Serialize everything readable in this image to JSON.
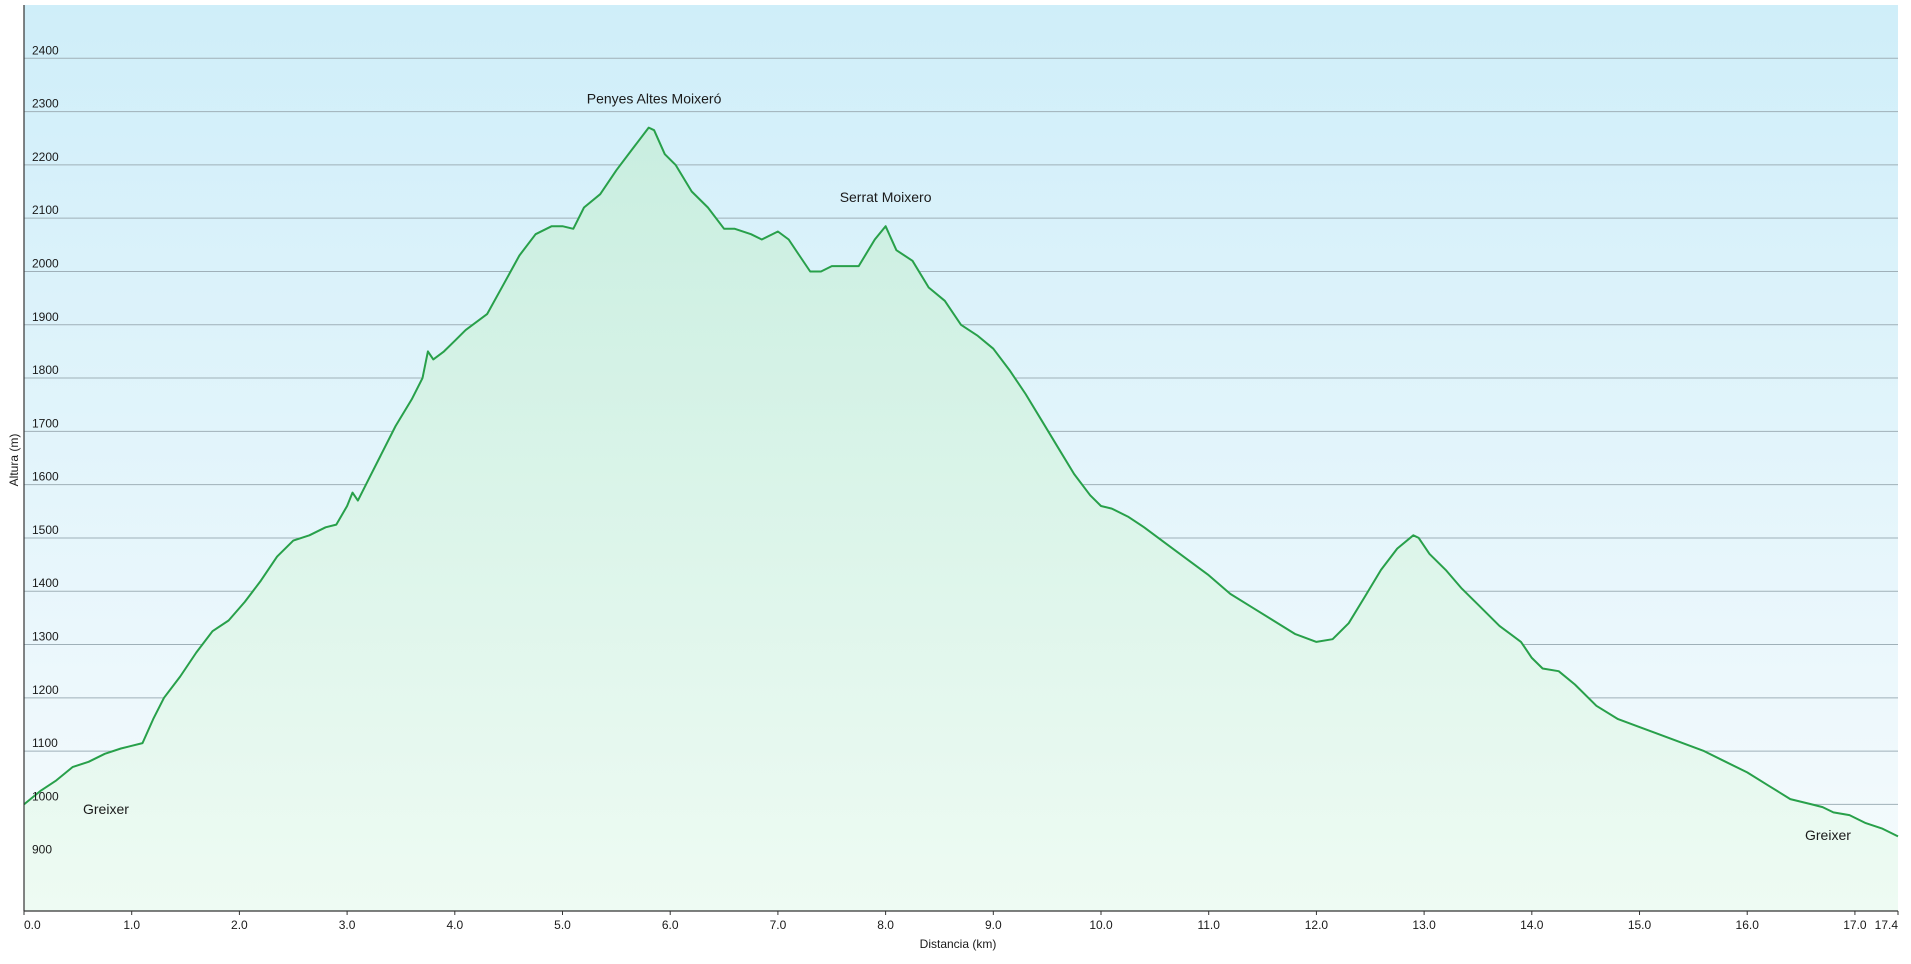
{
  "chart_data": {
    "type": "area",
    "title": "",
    "xlabel": "Distancia  (km)",
    "ylabel": "Altura (m)",
    "xlim": [
      0,
      17.4
    ],
    "ylim": [
      800,
      2500
    ],
    "x_ticks": [
      {
        "value": 0,
        "label": "0.0"
      },
      {
        "value": 1,
        "label": "1.0"
      },
      {
        "value": 2,
        "label": "2.0"
      },
      {
        "value": 3,
        "label": "3.0"
      },
      {
        "value": 4,
        "label": "4.0"
      },
      {
        "value": 5,
        "label": "5.0"
      },
      {
        "value": 6,
        "label": "6.0"
      },
      {
        "value": 7,
        "label": "7.0"
      },
      {
        "value": 8,
        "label": "8.0"
      },
      {
        "value": 9,
        "label": "9.0"
      },
      {
        "value": 10,
        "label": "10.0"
      },
      {
        "value": 11,
        "label": "11.0"
      },
      {
        "value": 12,
        "label": "12.0"
      },
      {
        "value": 13,
        "label": "13.0"
      },
      {
        "value": 14,
        "label": "14.0"
      },
      {
        "value": 15,
        "label": "15.0"
      },
      {
        "value": 16,
        "label": "16.0"
      },
      {
        "value": 17,
        "label": "17.0"
      },
      {
        "value": 17.4,
        "label": "17.4"
      }
    ],
    "y_ticks": [
      {
        "value": 900,
        "label": "900"
      },
      {
        "value": 1000,
        "label": "1000"
      },
      {
        "value": 1100,
        "label": "1100"
      },
      {
        "value": 1200,
        "label": "1200"
      },
      {
        "value": 1300,
        "label": "1300"
      },
      {
        "value": 1400,
        "label": "1400"
      },
      {
        "value": 1500,
        "label": "1500"
      },
      {
        "value": 1600,
        "label": "1600"
      },
      {
        "value": 1700,
        "label": "1700"
      },
      {
        "value": 1800,
        "label": "1800"
      },
      {
        "value": 1900,
        "label": "1900"
      },
      {
        "value": 2000,
        "label": "2000"
      },
      {
        "value": 2100,
        "label": "2100"
      },
      {
        "value": 2200,
        "label": "2200"
      },
      {
        "value": 2300,
        "label": "2300"
      },
      {
        "value": 2400,
        "label": "2400"
      }
    ],
    "grid": true,
    "series": [
      {
        "x": [
          0.0,
          0.15,
          0.3,
          0.45,
          0.6,
          0.75,
          0.9,
          1.0,
          1.1,
          1.2,
          1.3,
          1.45,
          1.6,
          1.75,
          1.9,
          2.05,
          2.2,
          2.35,
          2.5,
          2.65,
          2.8,
          2.9,
          3.0,
          3.05,
          3.1,
          3.2,
          3.3,
          3.45,
          3.6,
          3.7,
          3.75,
          3.8,
          3.9,
          4.0,
          4.1,
          4.3,
          4.45,
          4.6,
          4.75,
          4.9,
          5.0,
          5.1,
          5.2,
          5.35,
          5.5,
          5.65,
          5.8,
          5.85,
          5.95,
          6.05,
          6.2,
          6.35,
          6.5,
          6.6,
          6.75,
          6.85,
          7.0,
          7.1,
          7.2,
          7.3,
          7.4,
          7.5,
          7.6,
          7.75,
          7.9,
          8.0,
          8.1,
          8.25,
          8.4,
          8.55,
          8.7,
          8.85,
          9.0,
          9.15,
          9.3,
          9.45,
          9.6,
          9.75,
          9.9,
          10.0,
          10.1,
          10.25,
          10.4,
          10.6,
          10.8,
          11.0,
          11.2,
          11.4,
          11.6,
          11.8,
          12.0,
          12.15,
          12.3,
          12.45,
          12.6,
          12.75,
          12.9,
          12.95,
          13.05,
          13.2,
          13.35,
          13.5,
          13.7,
          13.9,
          14.0,
          14.1,
          14.25,
          14.4,
          14.6,
          14.8,
          15.0,
          15.2,
          15.4,
          15.6,
          15.8,
          16.0,
          16.2,
          16.4,
          16.6,
          16.7,
          16.8,
          16.95,
          17.1,
          17.25,
          17.4
        ],
        "y": [
          1000,
          1025,
          1045,
          1070,
          1080,
          1095,
          1105,
          1110,
          1115,
          1160,
          1200,
          1240,
          1285,
          1325,
          1345,
          1380,
          1420,
          1465,
          1495,
          1505,
          1520,
          1525,
          1560,
          1585,
          1570,
          1610,
          1650,
          1710,
          1760,
          1800,
          1850,
          1835,
          1850,
          1870,
          1890,
          1920,
          1975,
          2030,
          2070,
          2085,
          2085,
          2080,
          2120,
          2145,
          2190,
          2230,
          2270,
          2265,
          2220,
          2200,
          2150,
          2120,
          2080,
          2080,
          2070,
          2060,
          2075,
          2060,
          2030,
          2000,
          2000,
          2010,
          2010,
          2010,
          2060,
          2085,
          2040,
          2020,
          1970,
          1945,
          1900,
          1880,
          1855,
          1815,
          1770,
          1720,
          1670,
          1620,
          1580,
          1560,
          1555,
          1540,
          1520,
          1490,
          1460,
          1430,
          1395,
          1370,
          1345,
          1320,
          1305,
          1310,
          1340,
          1390,
          1440,
          1480,
          1505,
          1500,
          1470,
          1440,
          1405,
          1375,
          1335,
          1305,
          1275,
          1255,
          1250,
          1225,
          1185,
          1160,
          1145,
          1130,
          1115,
          1100,
          1080,
          1060,
          1035,
          1010,
          1000,
          995,
          985,
          980,
          965,
          955,
          940
        ],
        "color": "#28a04a"
      }
    ],
    "annotations": [
      {
        "text": "Penyes Altes Moixeró",
        "x": 5.85,
        "y": 2270
      },
      {
        "text": "Serrat Moixero",
        "x": 8.0,
        "y": 2085
      },
      {
        "text": "Greixer",
        "x": 0.5,
        "y": 1000
      },
      {
        "text": "Greixer",
        "x": 17.4,
        "y": 940
      }
    ],
    "colors": {
      "line": "#28a04a",
      "grid": "#9fb0b8",
      "axis": "#333333",
      "background_top": "#cfeef9",
      "background_bottom": "#f6fbfd",
      "area_top": "#c9eee0",
      "area_bottom": "#eefbf3"
    }
  }
}
